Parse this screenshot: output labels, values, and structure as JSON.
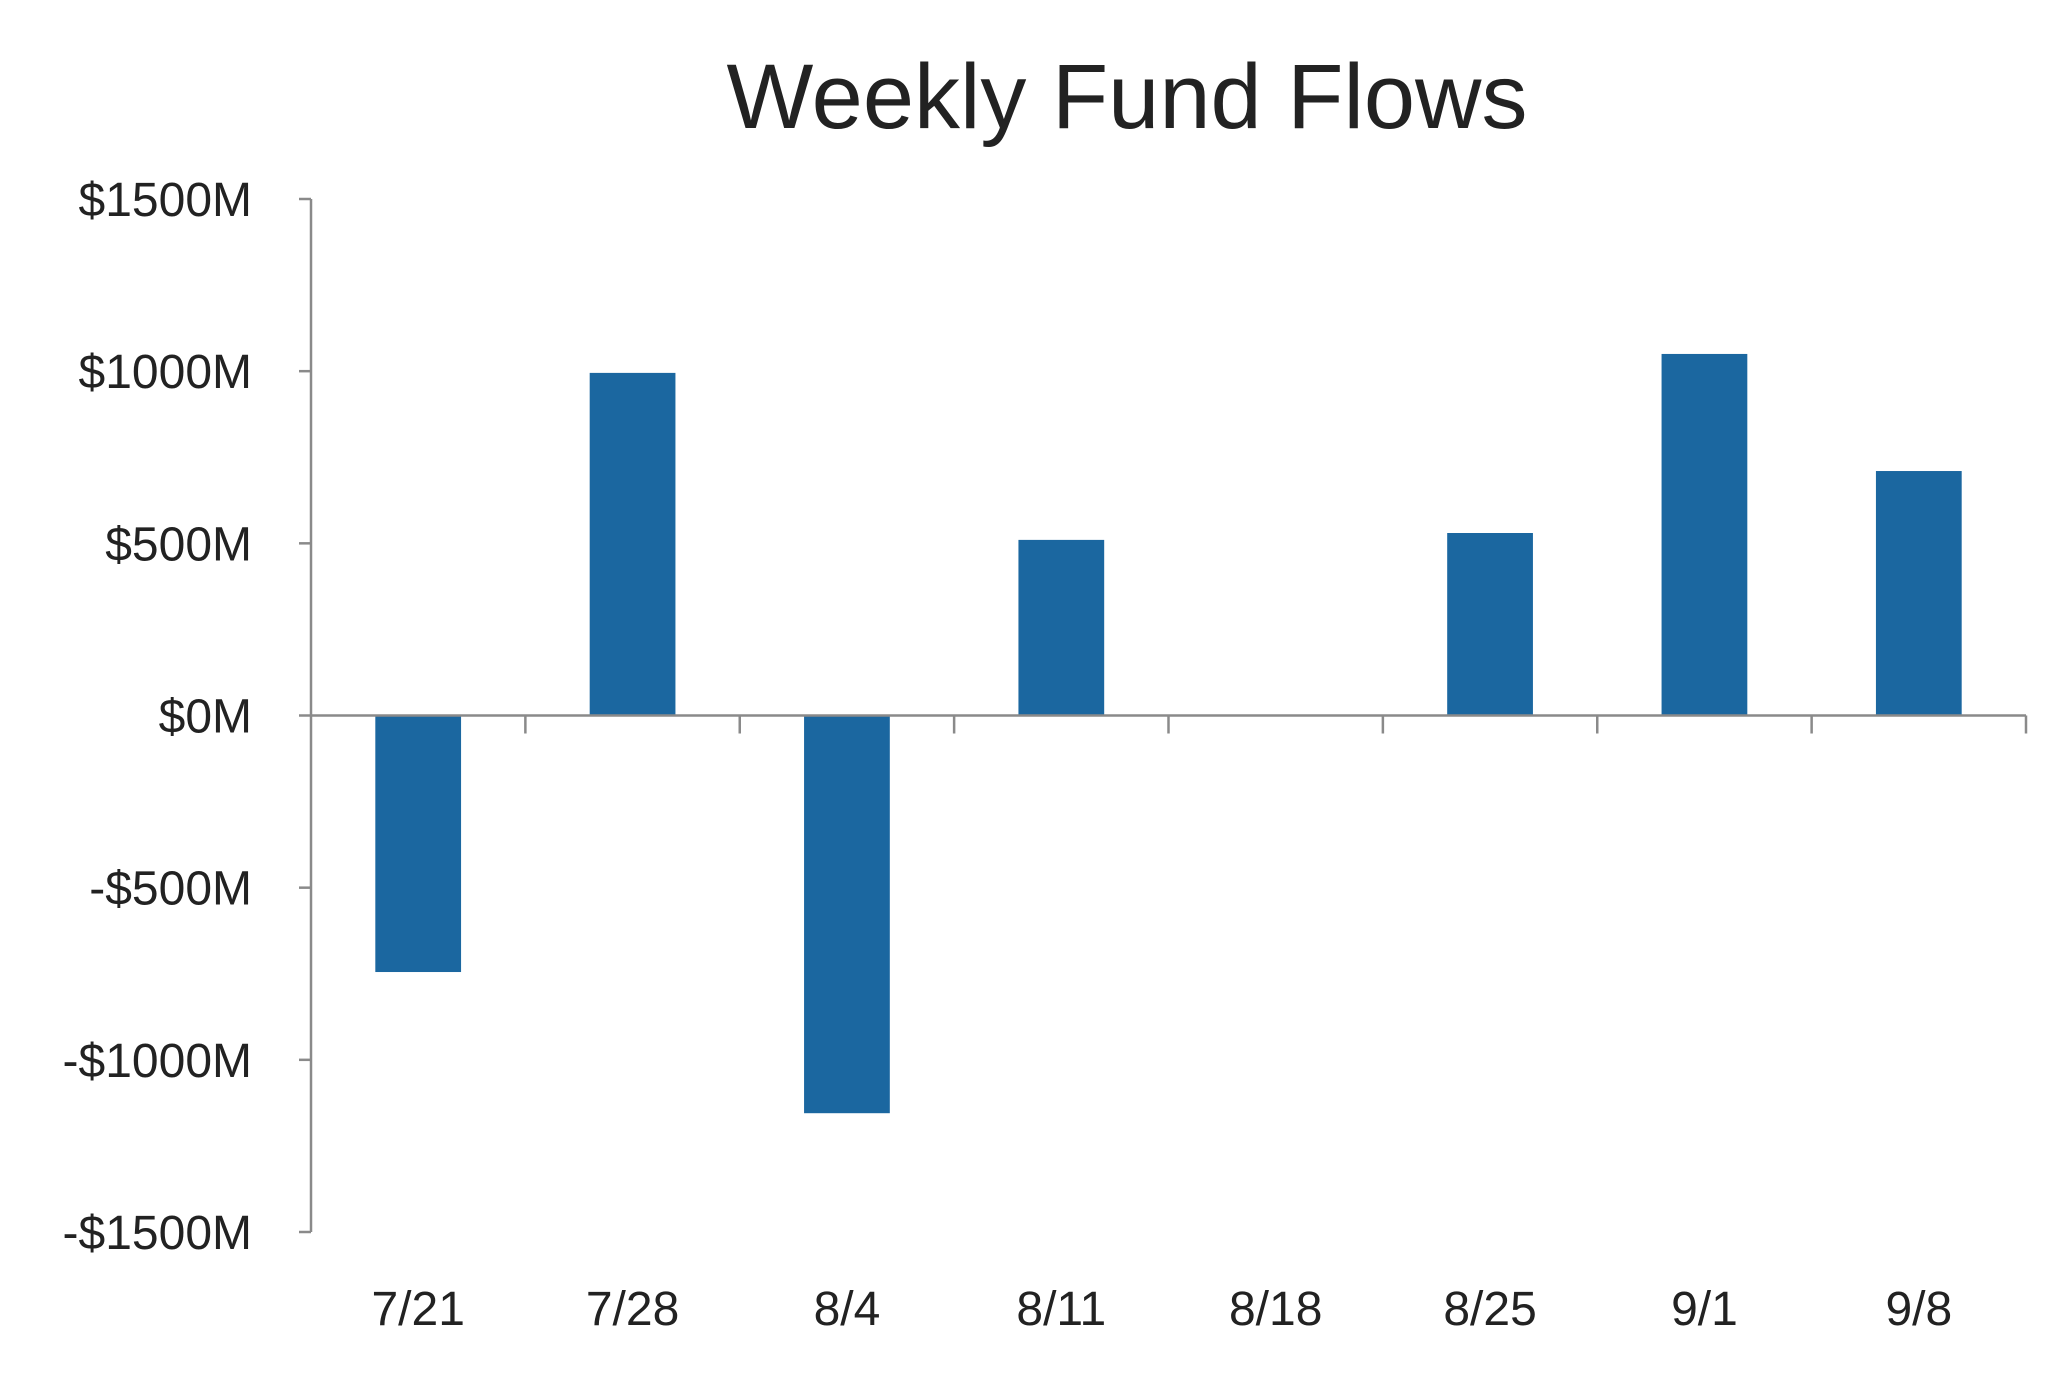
{
  "chart_data": {
    "type": "bar",
    "title": "Weekly Fund Flows",
    "xlabel": "",
    "ylabel": "",
    "categories": [
      "7/21",
      "7/28",
      "8/4",
      "8/11",
      "8/18",
      "8/25",
      "9/1",
      "9/8"
    ],
    "values": [
      -745,
      995,
      -1155,
      510,
      0,
      530,
      1050,
      710
    ],
    "ylim": [
      -1500,
      1500
    ],
    "yticks": [
      1500,
      1000,
      500,
      0,
      -500,
      -1000,
      -1500
    ],
    "ytick_labels": [
      "$1500M",
      "$1000M",
      "$500M",
      "$0M",
      "-$500M",
      "-$1000M",
      "-$1500M"
    ],
    "grid": false,
    "legend": "none",
    "bar_color": "#1b67a0",
    "axis_color": "#8a8a8a"
  }
}
